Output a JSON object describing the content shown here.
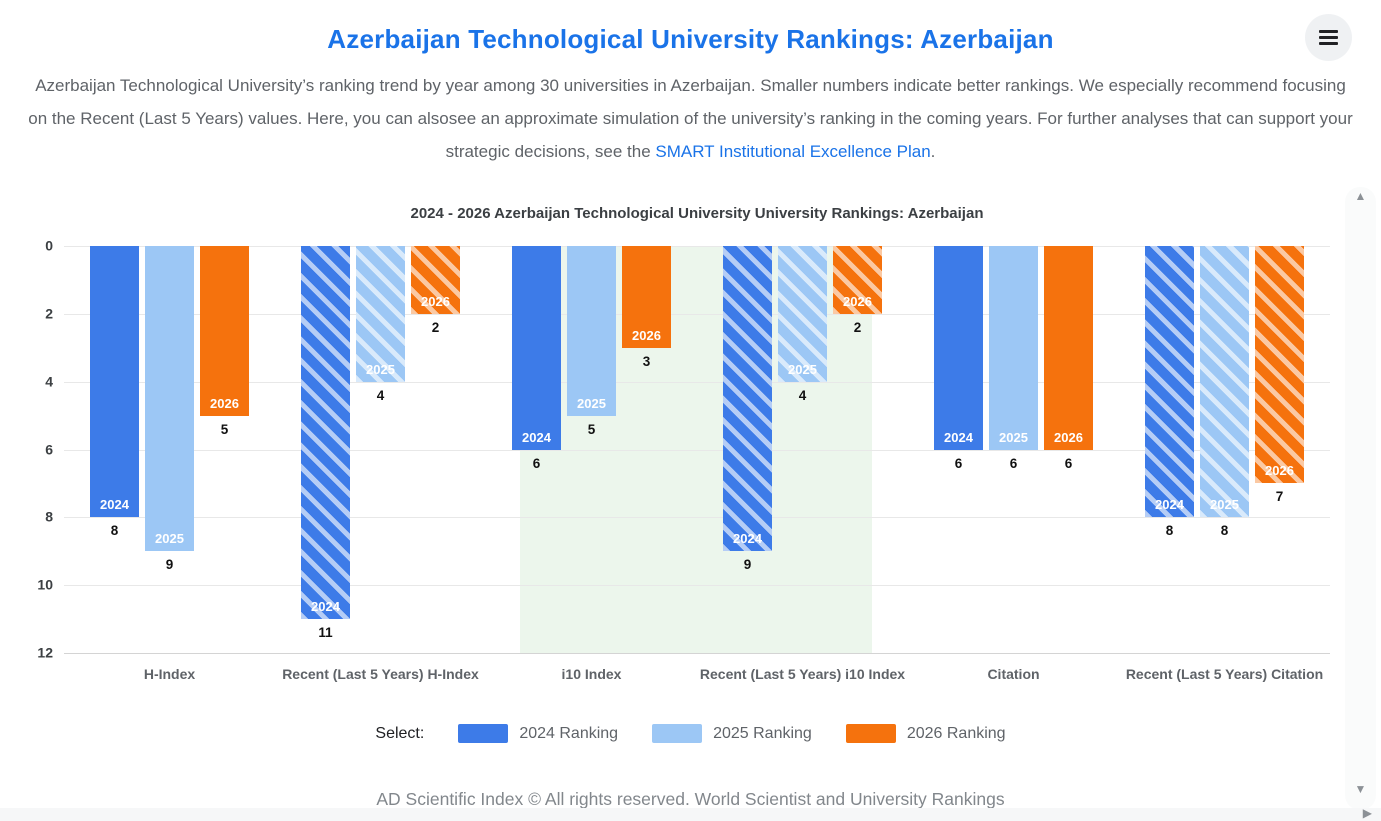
{
  "header": {
    "title": "Azerbaijan Technological University Rankings: Azerbaijan"
  },
  "description": {
    "text_before_link": "Azerbaijan Technological University’s ranking trend by year among 30 universities in Azerbaijan. Smaller numbers indicate better rankings. We especially recommend focusing on the Recent (Last 5 Years) values. Here, you can alsosee an approximate simulation of the university’s ranking in the coming years. For further analyses that can support your strategic decisions, see the ",
    "link_text": "SMART Institutional Excellence Plan",
    "text_after_link": "."
  },
  "chart_data": {
    "type": "bar",
    "title": "2024 - 2026 Azerbaijan Technological University University Rankings: Azerbaijan",
    "orientation": "vertical-inverted",
    "categories": [
      "H-Index",
      "Recent (Last 5 Years) H-Index",
      "i10 Index",
      "Recent (Last 5 Years) i10 Index",
      "Citation",
      "Recent (Last 5 Years) Citation"
    ],
    "series": [
      {
        "name": "2024 Ranking",
        "short_label": "2024",
        "color": "#3D7BE8",
        "values": [
          8,
          11,
          6,
          9,
          6,
          8
        ]
      },
      {
        "name": "2025 Ranking",
        "short_label": "2025",
        "color": "#9CC7F5",
        "values": [
          9,
          4,
          5,
          4,
          6,
          8
        ]
      },
      {
        "name": "2026 Ranking",
        "short_label": "2026",
        "color": "#F5720D",
        "values": [
          5,
          2,
          3,
          2,
          6,
          7
        ]
      }
    ],
    "hatched_categories": [
      false,
      true,
      false,
      true,
      false,
      true
    ],
    "y_axis": {
      "min": 0,
      "max": 12,
      "ticks": [
        0,
        2,
        4,
        6,
        8,
        10,
        12
      ],
      "inverted": true
    },
    "grid": true,
    "legend_position": "bottom",
    "legend_prefix": "Select:",
    "highlight_region": {
      "color": "#ECF6EC",
      "categories": [
        "i10 Index",
        "Recent (Last 5 Years) i10 Index"
      ]
    }
  },
  "footer": {
    "text": "AD Scientific Index © All rights reserved. World Scientist and University Rankings"
  },
  "icons": {
    "hamburger": "hamburger-icon",
    "scroll_up": "▲",
    "scroll_down": "▼",
    "scroll_right": "▶"
  },
  "colors": {
    "accent_blue": "#1A73E8",
    "grid_line": "#E8E8E8",
    "highlight_green": "#ECF6EC",
    "text_gray": "#5F6368"
  }
}
